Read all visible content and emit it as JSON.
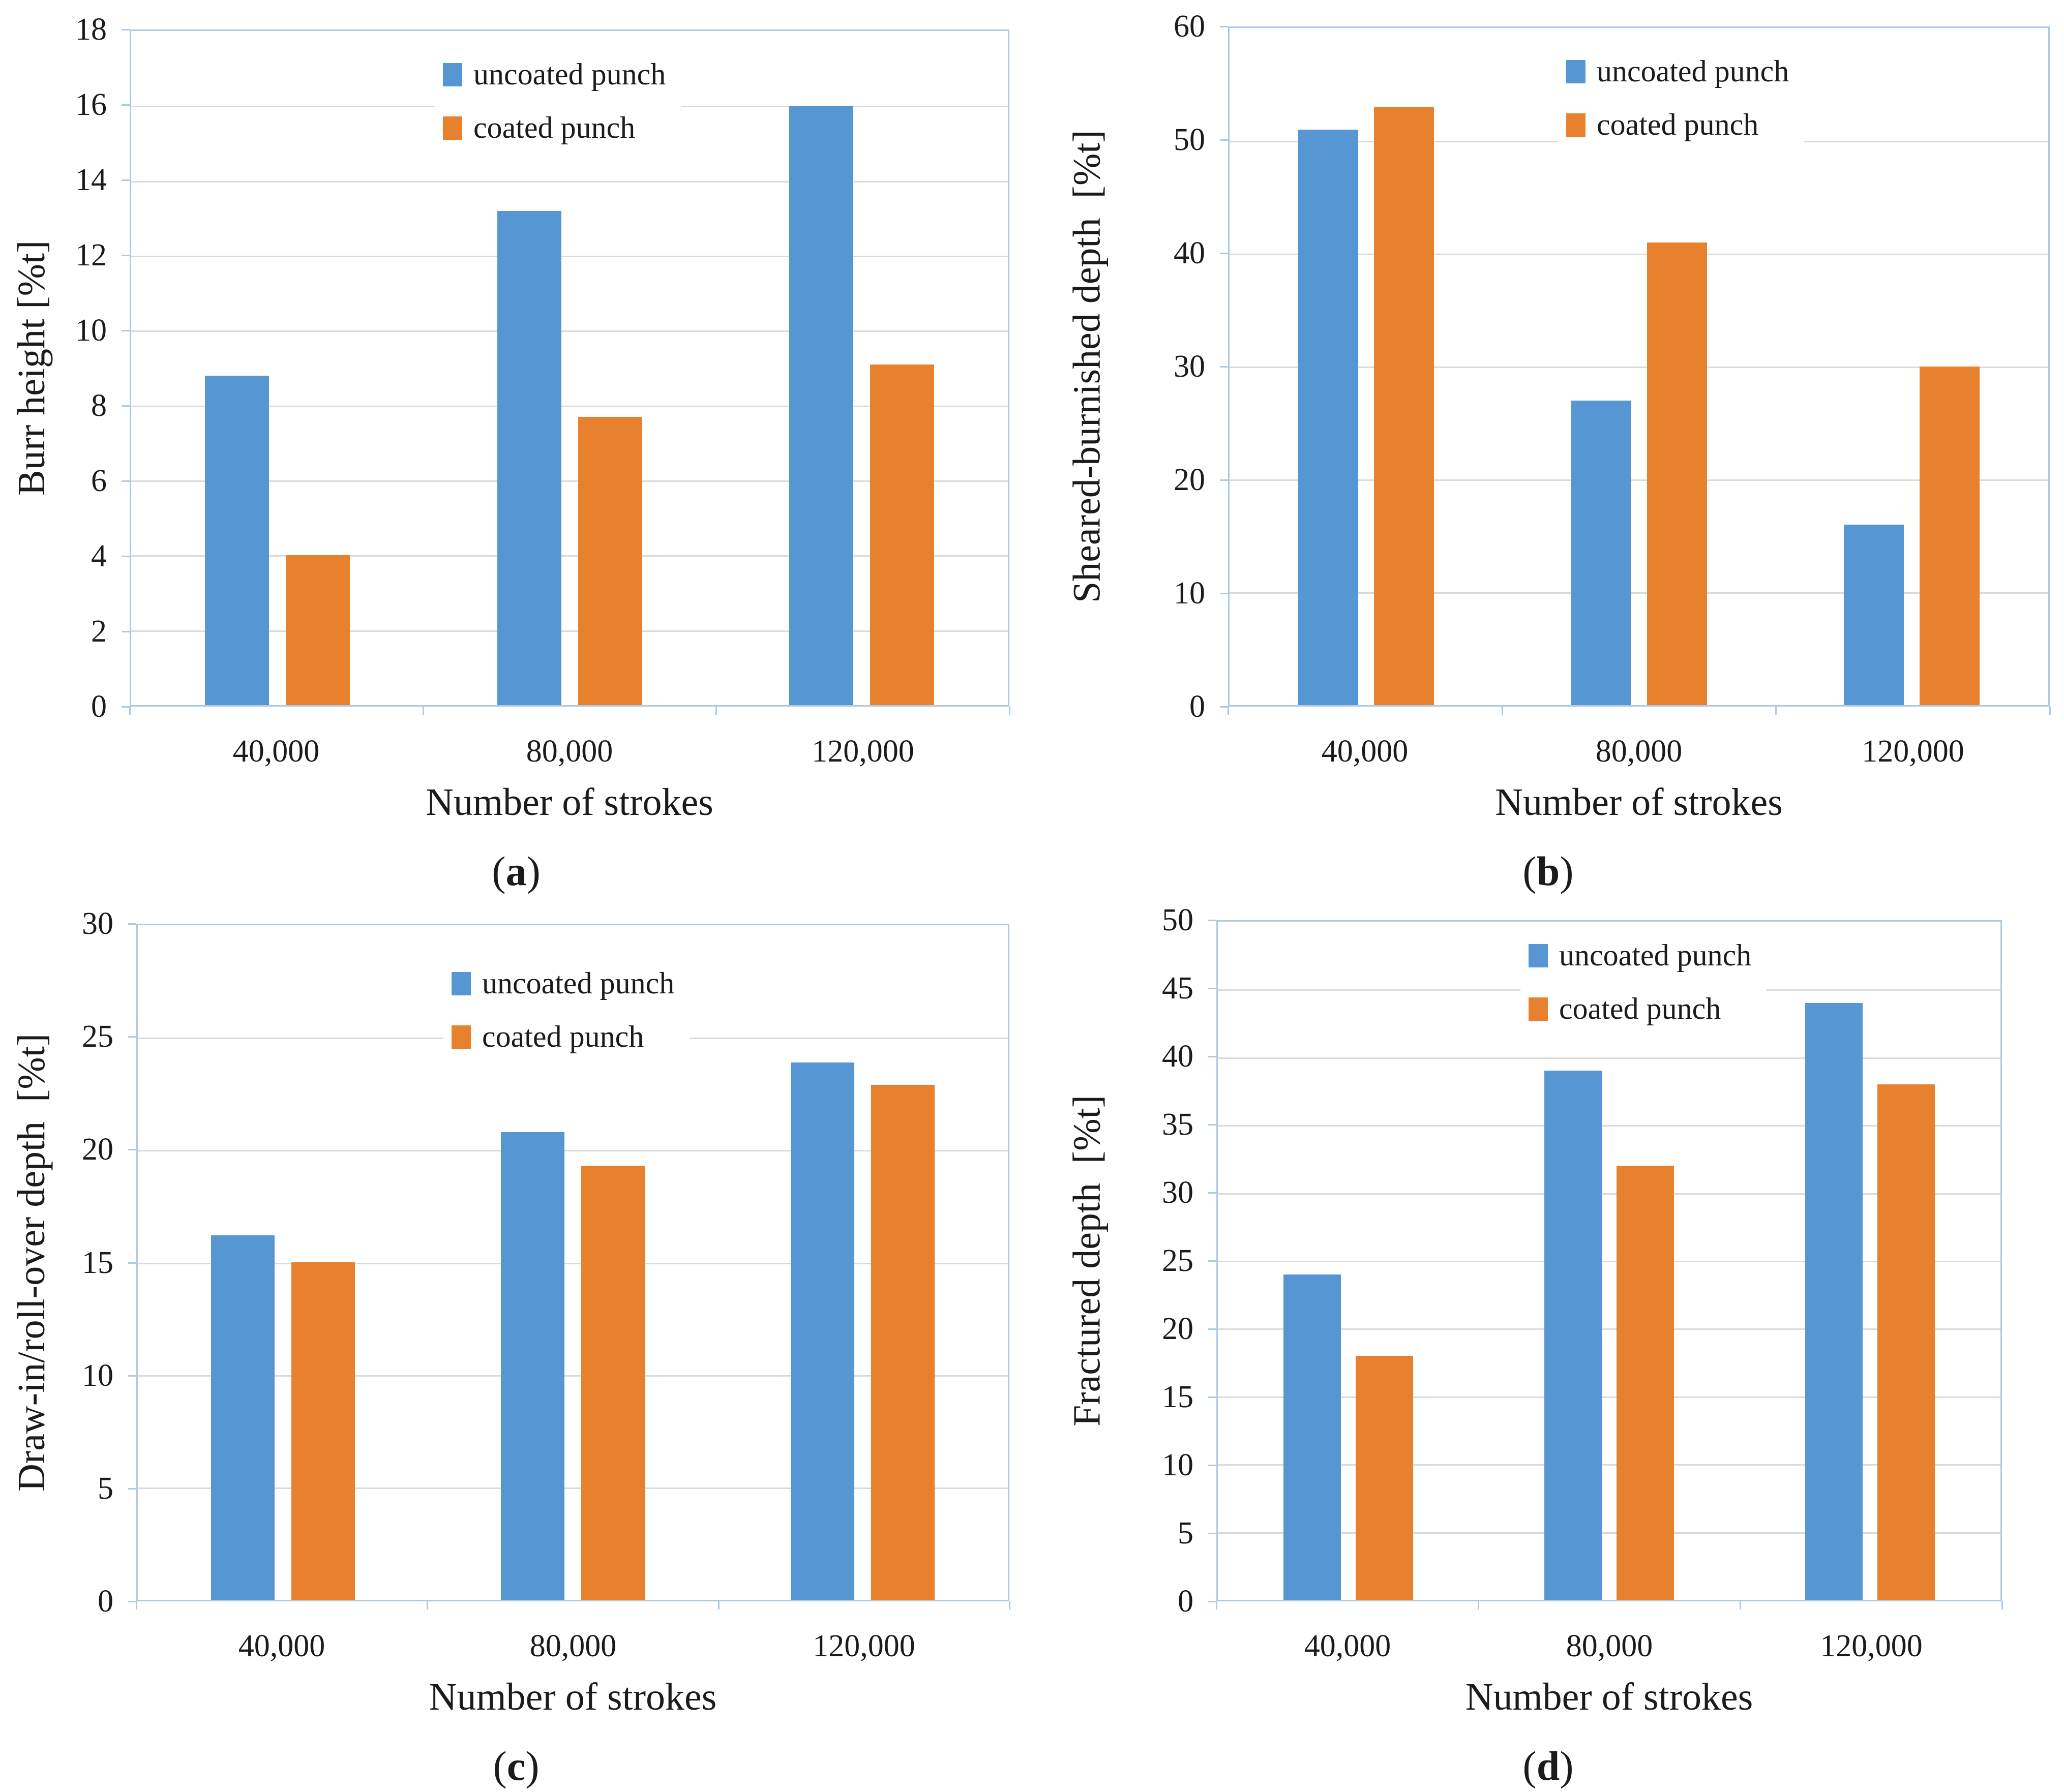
{
  "figure": {
    "xlabel": "Number of strokes",
    "categories": [
      "40,000",
      "80,000",
      "120,000"
    ],
    "series_labels": [
      "uncoated punch",
      "coated punch"
    ],
    "panel_paren_open": "(",
    "panel_paren_close": ")"
  },
  "colors": {
    "background": "#FFFFFF",
    "uncoated": "#5697D3",
    "coated": "#E8812E",
    "plot_border": "#AECAE3",
    "gridline": "#DADADA",
    "text": "#1B1B1B"
  },
  "chart_data": [
    {
      "type": "bar",
      "panel_letter": "a",
      "xlabel": "Number of strokes",
      "ylabel": "Burr height [%t]",
      "ylim": [
        0,
        18
      ],
      "ystep": 2,
      "grid": true,
      "legend_position": "inside-top-center",
      "categories": [
        "40,000",
        "80,000",
        "120,000"
      ],
      "series": [
        {
          "name": "uncoated punch",
          "color": "#5697D3",
          "values": [
            8.8,
            13.2,
            16.0
          ]
        },
        {
          "name": "coated punch",
          "color": "#E8812E",
          "values": [
            4.0,
            7.7,
            9.1
          ]
        }
      ]
    },
    {
      "type": "bar",
      "panel_letter": "b",
      "xlabel": "Number of strokes",
      "ylabel": "Sheared-burnished depth  [%t]",
      "ylim": [
        0,
        60
      ],
      "ystep": 10,
      "grid": true,
      "legend_position": "inside-top-center",
      "categories": [
        "40,000",
        "80,000",
        "120,000"
      ],
      "series": [
        {
          "name": "uncoated punch",
          "color": "#5697D3",
          "values": [
            51,
            27,
            16
          ]
        },
        {
          "name": "coated punch",
          "color": "#E8812E",
          "values": [
            53,
            41,
            30
          ]
        }
      ]
    },
    {
      "type": "bar",
      "panel_letter": "c",
      "xlabel": "Number of strokes",
      "ylabel": "Draw-in/roll-over depth  [%t]",
      "ylim": [
        0,
        30
      ],
      "ystep": 5,
      "grid": true,
      "legend_position": "inside-top-center",
      "categories": [
        "40,000",
        "80,000",
        "120,000"
      ],
      "series": [
        {
          "name": "uncoated punch",
          "color": "#5697D3",
          "values": [
            16.2,
            20.8,
            23.9
          ]
        },
        {
          "name": "coated punch",
          "color": "#E8812E",
          "values": [
            15.0,
            19.3,
            22.9
          ]
        }
      ]
    },
    {
      "type": "bar",
      "panel_letter": "d",
      "xlabel": "Number of strokes",
      "ylabel": "Fractured depth  [%t]",
      "ylim": [
        0,
        50
      ],
      "ystep": 5,
      "grid": true,
      "legend_position": "inside-top-center",
      "categories": [
        "40,000",
        "80,000",
        "120,000"
      ],
      "series": [
        {
          "name": "uncoated punch",
          "color": "#5697D3",
          "values": [
            24,
            39,
            44
          ]
        },
        {
          "name": "coated punch",
          "color": "#E8812E",
          "values": [
            18,
            32,
            38
          ]
        }
      ]
    }
  ]
}
